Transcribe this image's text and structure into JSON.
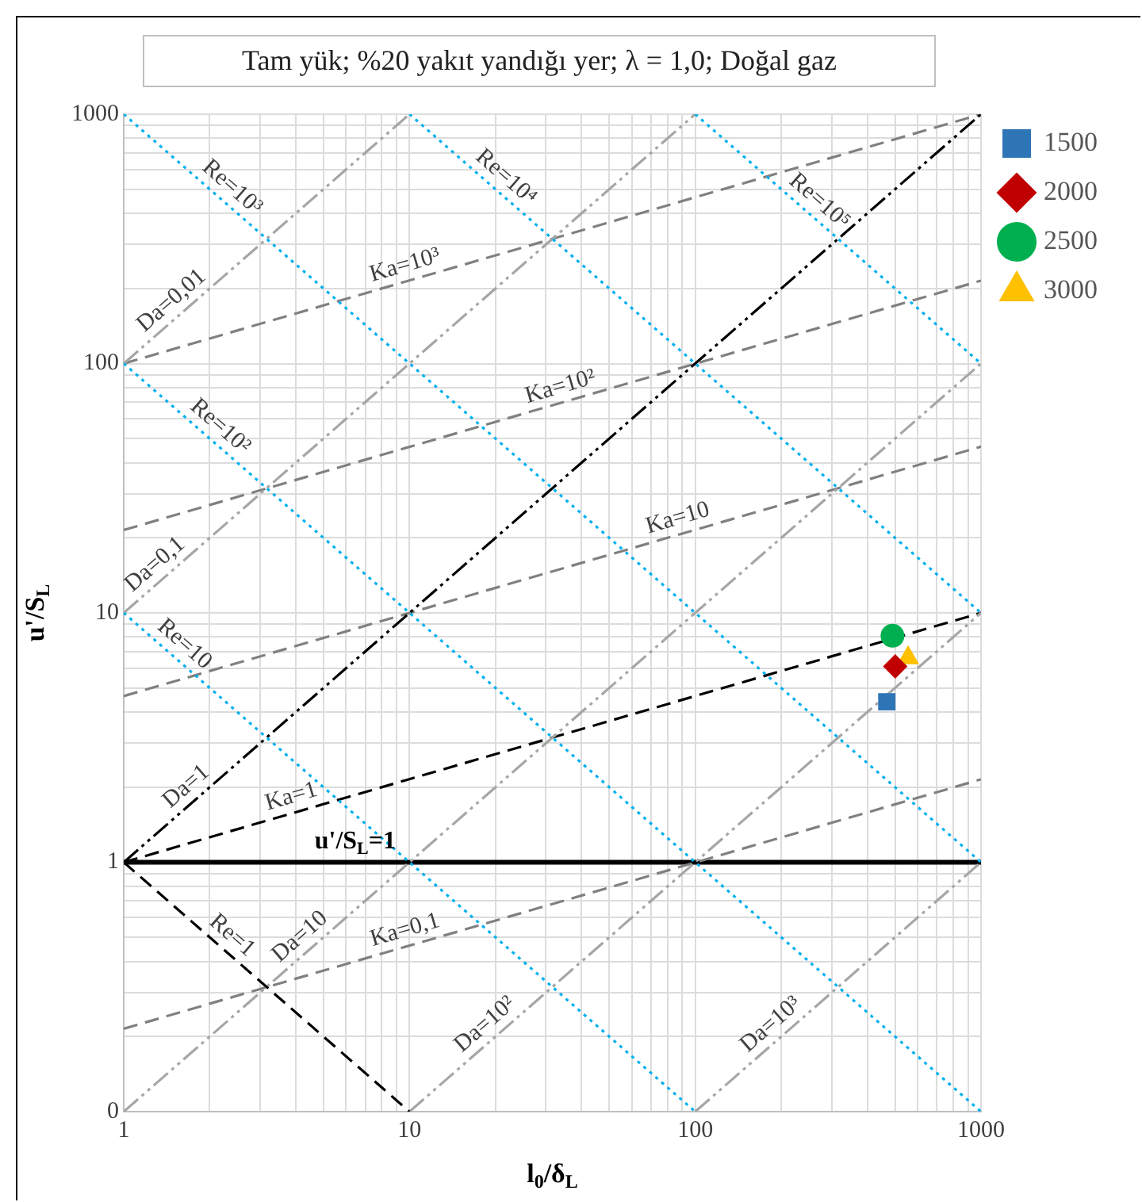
{
  "chart_data": {
    "type": "scatter",
    "title": "Tam yük; %20 yakıt yandığı yer; λ = 1,0; Doğal gaz",
    "xlabel": "l$_{0}$/δ$_{L}$",
    "ylabel": "u'/S$_{L}$",
    "log": "xy",
    "grid": true,
    "legend": "right",
    "xlim": [
      1,
      1000
    ],
    "ylim": [
      0.1,
      1000
    ],
    "xticks": [
      1,
      {
        "value": 2,
        "label": null
      },
      {
        "value": 3,
        "label": null
      },
      {
        "value": 4,
        "label": null
      },
      {
        "value": 5,
        "label": null
      },
      {
        "value": 6,
        "label": null
      },
      {
        "value": 7,
        "label": null
      },
      {
        "value": 8,
        "label": null
      },
      {
        "value": 9,
        "label": null
      },
      10,
      {
        "value": 20,
        "label": null
      },
      {
        "value": 30,
        "label": null
      },
      {
        "value": 40,
        "label": null
      },
      {
        "value": 50,
        "label": null
      },
      {
        "value": 60,
        "label": null
      },
      {
        "value": 70,
        "label": null
      },
      {
        "value": 80,
        "label": null
      },
      {
        "value": 90,
        "label": null
      },
      100,
      {
        "value": 200,
        "label": null
      },
      {
        "value": 300,
        "label": null
      },
      {
        "value": 400,
        "label": null
      },
      {
        "value": 500,
        "label": null
      },
      {
        "value": 600,
        "label": null
      },
      {
        "value": 700,
        "label": null
      },
      {
        "value": 800,
        "label": null
      },
      {
        "value": 900,
        "label": null
      },
      1000
    ],
    "yticks": [
      {
        "value": 0.1,
        "label": "0"
      },
      {
        "value": 0.2,
        "label": null
      },
      {
        "value": 0.3,
        "label": null
      },
      {
        "value": 0.4,
        "label": null
      },
      {
        "value": 0.5,
        "label": null
      },
      {
        "value": 0.6,
        "label": null
      },
      {
        "value": 0.7,
        "label": null
      },
      {
        "value": 0.8,
        "label": null
      },
      {
        "value": 0.9,
        "label": null
      },
      1,
      {
        "value": 2,
        "label": null
      },
      {
        "value": 3,
        "label": null
      },
      {
        "value": 4,
        "label": null
      },
      {
        "value": 5,
        "label": null
      },
      {
        "value": 6,
        "label": null
      },
      {
        "value": 7,
        "label": null
      },
      {
        "value": 8,
        "label": null
      },
      {
        "value": 9,
        "label": null
      },
      10,
      {
        "value": 20,
        "label": null
      },
      {
        "value": 30,
        "label": null
      },
      {
        "value": 40,
        "label": null
      },
      {
        "value": 50,
        "label": null
      },
      {
        "value": 60,
        "label": null
      },
      {
        "value": 70,
        "label": null
      },
      {
        "value": 80,
        "label": null
      },
      {
        "value": 90,
        "label": null
      },
      100,
      {
        "value": 200,
        "label": null
      },
      {
        "value": 300,
        "label": null
      },
      {
        "value": 400,
        "label": null
      },
      {
        "value": 500,
        "label": null
      },
      {
        "value": 600,
        "label": null
      },
      {
        "value": 700,
        "label": null
      },
      {
        "value": 800,
        "label": null
      },
      {
        "value": 900,
        "label": null
      },
      1000
    ],
    "series": [
      {
        "type": "line",
        "color": "#00b0f0",
        "line_style": "dotted",
        "x": [
          1,
          100
        ],
        "values": [
          10,
          0.1
        ]
      },
      {
        "type": "line",
        "color": "#00b0f0",
        "line_style": "dotted",
        "x": [
          1,
          1000
        ],
        "values": [
          100,
          0.1
        ]
      },
      {
        "type": "line",
        "color": "#00b0f0",
        "line_style": "dotted",
        "x": [
          1,
          1000
        ],
        "values": [
          1000,
          1
        ]
      },
      {
        "type": "line",
        "color": "#00b0f0",
        "line_style": "dotted",
        "x": [
          10,
          1000
        ],
        "values": [
          1000,
          10
        ]
      },
      {
        "type": "line",
        "color": "#00b0f0",
        "line_style": "dotted",
        "x": [
          100,
          1000
        ],
        "values": [
          1000,
          100
        ]
      },
      {
        "type": "line",
        "color": "#000000",
        "line_style": "dashed",
        "x": [
          1,
          10
        ],
        "values": [
          1,
          0.1
        ]
      },
      {
        "type": "line",
        "color": "#a6a6a6",
        "line_style": "dashdot",
        "x": [
          1,
          10
        ],
        "values": [
          100,
          1000
        ]
      },
      {
        "type": "line",
        "color": "#a6a6a6",
        "line_style": "dashdot",
        "x": [
          1,
          100
        ],
        "values": [
          10,
          1000
        ]
      },
      {
        "type": "line",
        "color": "#000000",
        "line_style": "dashdot",
        "x": [
          1,
          1000
        ],
        "values": [
          1,
          1000
        ]
      },
      {
        "type": "line",
        "color": "#a6a6a6",
        "line_style": "dashdot",
        "x": [
          1,
          1000
        ],
        "values": [
          0.1,
          100
        ]
      },
      {
        "type": "line",
        "color": "#a6a6a6",
        "line_style": "dashdot",
        "x": [
          10,
          1000
        ],
        "values": [
          0.1,
          10
        ]
      },
      {
        "type": "line",
        "color": "#a6a6a6",
        "line_style": "dashdot",
        "x": [
          100,
          1000
        ],
        "values": [
          0.1,
          1
        ]
      },
      {
        "type": "line",
        "color": "#808080",
        "line_style": "dashed",
        "x": [
          1,
          1000
        ],
        "values": [
          0.215,
          2.15
        ]
      },
      {
        "type": "line",
        "color": "#000000",
        "line_style": "dashed",
        "x": [
          1,
          1000
        ],
        "values": [
          1,
          10
        ]
      },
      {
        "type": "line",
        "color": "#808080",
        "line_style": "dashed",
        "x": [
          1,
          1000
        ],
        "values": [
          4.64,
          46.4
        ]
      },
      {
        "type": "line",
        "color": "#808080",
        "line_style": "dashed",
        "x": [
          1,
          1000
        ],
        "values": [
          21.5,
          215
        ]
      },
      {
        "type": "line",
        "color": "#808080",
        "line_style": "dashed",
        "x": [
          1,
          1000
        ],
        "values": [
          100,
          1000
        ]
      },
      {
        "type": "scatter",
        "name": "1500",
        "color": "#2e75b6",
        "marker": "square",
        "x": [
          468
        ],
        "values": [
          4.4
        ]
      },
      {
        "type": "scatter",
        "name": "2000",
        "color": "#c00000",
        "marker": "diamond",
        "x": [
          501
        ],
        "values": [
          6.1
        ]
      },
      {
        "type": "scatter",
        "name": "2500",
        "color": "#00b050",
        "marker": "circle",
        "x": [
          490
        ],
        "values": [
          8.1
        ]
      },
      {
        "type": "scatter",
        "name": "3000",
        "color": "#ffc000",
        "marker": "triangle",
        "x": [
          556
        ],
        "values": [
          6.6
        ]
      }
    ],
    "ref_lines": [
      {
        "axis": "y",
        "value": 1,
        "label": "u'/S$_{L}$=1",
        "color": "#000000",
        "line_style": "solid"
      }
    ],
    "annotations": [
      {
        "text": "Re=10³",
        "x": 2.2,
        "y": 455
      },
      {
        "text": "Re=10⁴",
        "x": 20,
        "y": 500
      },
      {
        "text": "Re=10⁵",
        "x": 250,
        "y": 400
      },
      {
        "text": "Da=0,01",
        "x": 1.6,
        "y": 160
      },
      {
        "text": "Ka=10³",
        "x": 10,
        "y": 215
      },
      {
        "text": "Re=10²",
        "x": 2,
        "y": 50
      },
      {
        "text": "Ka=10²",
        "x": 35,
        "y": 70
      },
      {
        "text": "Da=0,1",
        "x": 1.4,
        "y": 14
      },
      {
        "text": "Ka=10",
        "x": 90,
        "y": 20.8
      },
      {
        "text": "Re=10",
        "x": 1.5,
        "y": 6.7
      },
      {
        "text": "Da=1",
        "x": 1.8,
        "y": 1.8
      },
      {
        "text": "Ka=1",
        "x": 4,
        "y": 1.59
      },
      {
        "text": "Re=1",
        "x": 2.2,
        "y": 0.455
      },
      {
        "text": "Da=10",
        "x": 4.5,
        "y": 0.45
      },
      {
        "text": "Ka=0,1",
        "x": 10,
        "y": 0.464
      },
      {
        "text": "Da=10²",
        "x": 20,
        "y": 0.2
      },
      {
        "text": "Da=10³",
        "x": 200,
        "y": 0.2
      }
    ]
  }
}
